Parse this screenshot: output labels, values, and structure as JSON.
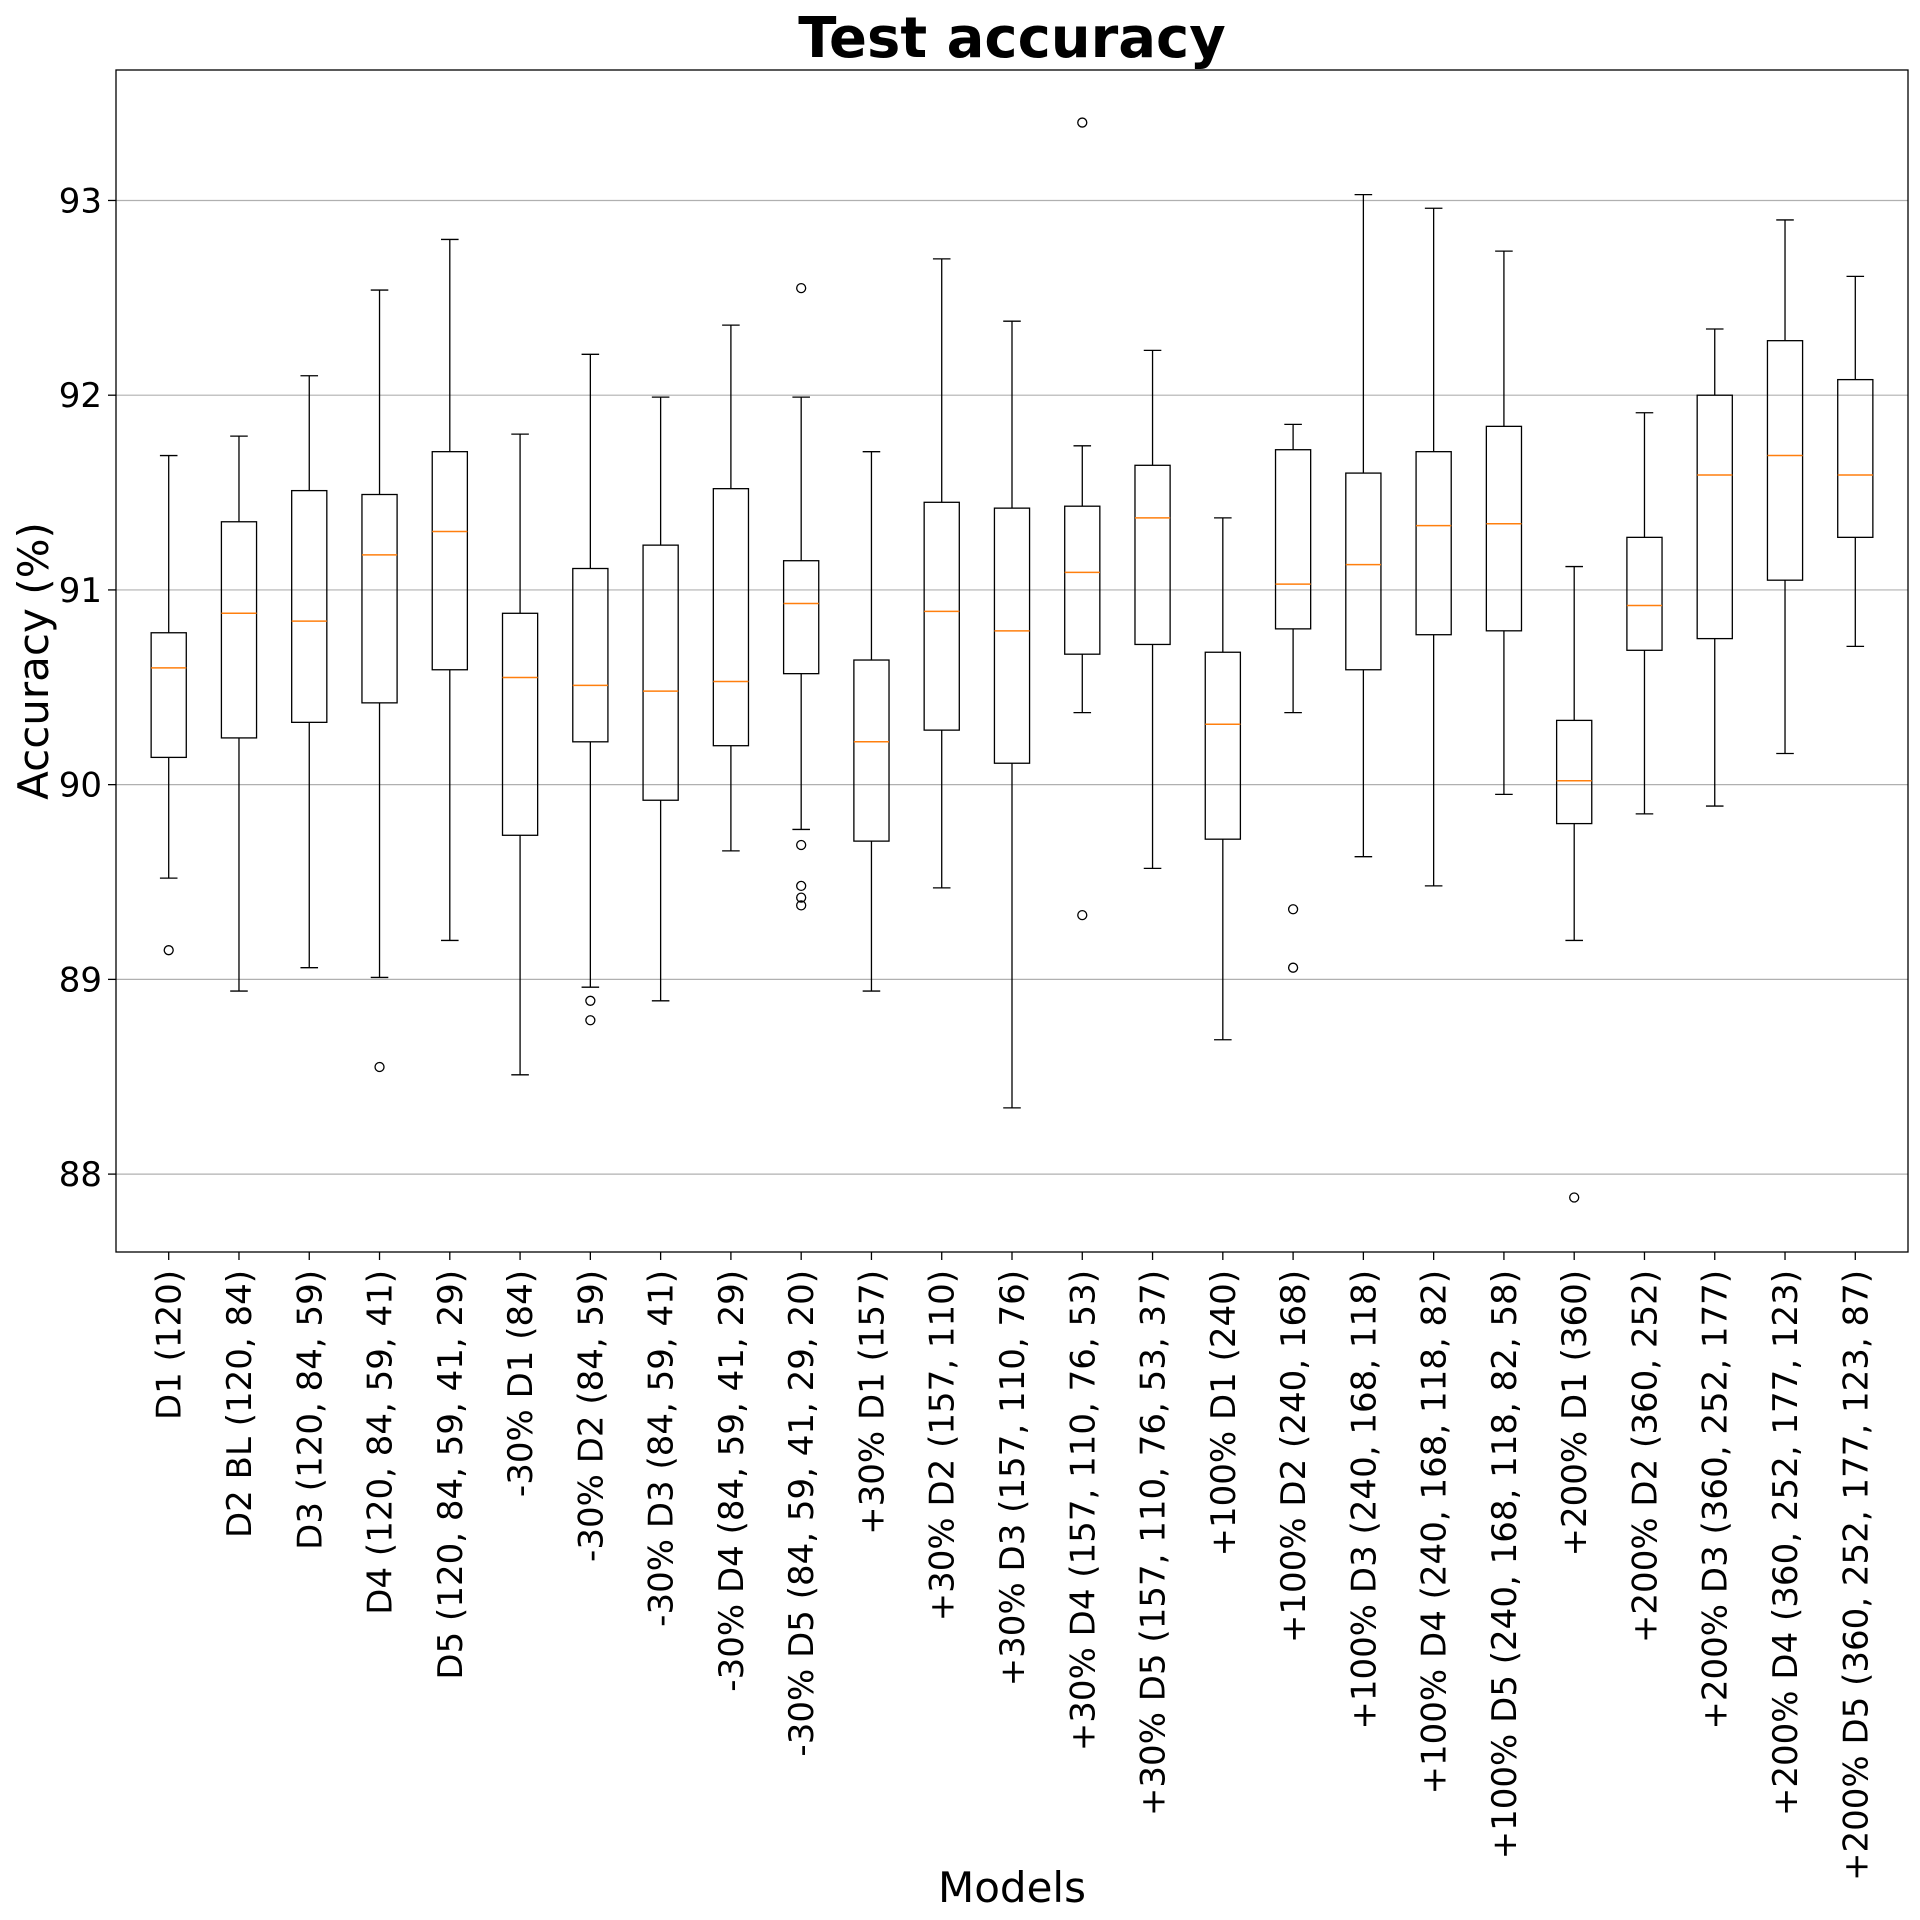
{
  "chart_data": {
    "type": "box",
    "title": "Test accuracy",
    "xlabel": "Models",
    "ylabel": "Accuracy (%)",
    "ylim": [
      87.6,
      93.67
    ],
    "yticks": [
      88,
      89,
      90,
      91,
      92,
      93
    ],
    "grid": "y",
    "colors": {
      "box": "#000000",
      "median": "#ff7f0e",
      "grid": "#b0b0b0"
    },
    "boxes": [
      {
        "label": "D1 (120)",
        "whisker_low": 89.52,
        "q1": 90.14,
        "median": 90.6,
        "q3": 90.78,
        "whisker_high": 91.69,
        "outliers": [
          89.15
        ]
      },
      {
        "label": "D2 BL (120, 84)",
        "whisker_low": 88.94,
        "q1": 90.24,
        "median": 90.88,
        "q3": 91.35,
        "whisker_high": 91.79,
        "outliers": []
      },
      {
        "label": "D3 (120, 84, 59)",
        "whisker_low": 89.06,
        "q1": 90.32,
        "median": 90.84,
        "q3": 91.51,
        "whisker_high": 92.1,
        "outliers": []
      },
      {
        "label": "D4 (120, 84, 59, 41)",
        "whisker_low": 89.01,
        "q1": 90.42,
        "median": 91.18,
        "q3": 91.49,
        "whisker_high": 92.54,
        "outliers": [
          88.55
        ]
      },
      {
        "label": "D5 (120, 84, 59, 41, 29)",
        "whisker_low": 89.2,
        "q1": 90.59,
        "median": 91.3,
        "q3": 91.71,
        "whisker_high": 92.8,
        "outliers": []
      },
      {
        "label": "-30% D1 (84)",
        "whisker_low": 88.51,
        "q1": 89.74,
        "median": 90.55,
        "q3": 90.88,
        "whisker_high": 91.8,
        "outliers": []
      },
      {
        "label": "-30% D2 (84, 59)",
        "whisker_low": 88.96,
        "q1": 90.22,
        "median": 90.51,
        "q3": 91.11,
        "whisker_high": 92.21,
        "outliers": [
          88.89,
          88.79
        ]
      },
      {
        "label": "-30% D3 (84, 59, 41)",
        "whisker_low": 88.89,
        "q1": 89.92,
        "median": 90.48,
        "q3": 91.23,
        "whisker_high": 91.99,
        "outliers": []
      },
      {
        "label": "-30% D4 (84, 59, 41, 29)",
        "whisker_low": 89.66,
        "q1": 90.2,
        "median": 90.53,
        "q3": 91.52,
        "whisker_high": 92.36,
        "outliers": []
      },
      {
        "label": "-30% D5 (84, 59, 41, 29, 20)",
        "whisker_low": 89.77,
        "q1": 90.57,
        "median": 90.93,
        "q3": 91.15,
        "whisker_high": 91.99,
        "outliers": [
          92.55,
          89.69,
          89.48,
          89.42,
          89.38
        ]
      },
      {
        "label": "+30% D1 (157)",
        "whisker_low": 88.94,
        "q1": 89.71,
        "median": 90.22,
        "q3": 90.64,
        "whisker_high": 91.71,
        "outliers": []
      },
      {
        "label": "+30% D2 (157, 110)",
        "whisker_low": 89.47,
        "q1": 90.28,
        "median": 90.89,
        "q3": 91.45,
        "whisker_high": 92.7,
        "outliers": []
      },
      {
        "label": "+30% D3 (157, 110, 76)",
        "whisker_low": 88.34,
        "q1": 90.11,
        "median": 90.79,
        "q3": 91.42,
        "whisker_high": 92.38,
        "outliers": []
      },
      {
        "label": "+30% D4 (157, 110, 76, 53)",
        "whisker_low": 90.37,
        "q1": 90.67,
        "median": 91.09,
        "q3": 91.43,
        "whisker_high": 91.74,
        "outliers": [
          93.4,
          89.33
        ]
      },
      {
        "label": "+30% D5 (157, 110, 76, 53, 37)",
        "whisker_low": 89.57,
        "q1": 90.72,
        "median": 91.37,
        "q3": 91.64,
        "whisker_high": 92.23,
        "outliers": []
      },
      {
        "label": "+100% D1 (240)",
        "whisker_low": 88.69,
        "q1": 89.72,
        "median": 90.31,
        "q3": 90.68,
        "whisker_high": 91.37,
        "outliers": []
      },
      {
        "label": "+100% D2 (240, 168)",
        "whisker_low": 90.37,
        "q1": 90.8,
        "median": 91.03,
        "q3": 91.72,
        "whisker_high": 91.85,
        "outliers": [
          89.36,
          89.06
        ]
      },
      {
        "label": "+100% D3 (240, 168, 118)",
        "whisker_low": 89.63,
        "q1": 90.59,
        "median": 91.13,
        "q3": 91.6,
        "whisker_high": 93.03,
        "outliers": []
      },
      {
        "label": "+100% D4 (240, 168, 118, 82)",
        "whisker_low": 89.48,
        "q1": 90.77,
        "median": 91.33,
        "q3": 91.71,
        "whisker_high": 92.96,
        "outliers": []
      },
      {
        "label": "+100% D5 (240, 168, 118, 82, 58)",
        "whisker_low": 89.95,
        "q1": 90.79,
        "median": 91.34,
        "q3": 91.84,
        "whisker_high": 92.74,
        "outliers": []
      },
      {
        "label": "+200% D1 (360)",
        "whisker_low": 89.2,
        "q1": 89.8,
        "median": 90.02,
        "q3": 90.33,
        "whisker_high": 91.12,
        "outliers": [
          87.88
        ]
      },
      {
        "label": "+200% D2 (360, 252)",
        "whisker_low": 89.85,
        "q1": 90.69,
        "median": 90.92,
        "q3": 91.27,
        "whisker_high": 91.91,
        "outliers": []
      },
      {
        "label": "+200% D3 (360, 252, 177)",
        "whisker_low": 89.89,
        "q1": 90.75,
        "median": 91.59,
        "q3": 92.0,
        "whisker_high": 92.34,
        "outliers": []
      },
      {
        "label": "+200% D4 (360, 252, 177, 123)",
        "whisker_low": 90.16,
        "q1": 91.05,
        "median": 91.69,
        "q3": 92.28,
        "whisker_high": 92.9,
        "outliers": []
      },
      {
        "label": "+200% D5 (360, 252, 177, 123, 87)",
        "whisker_low": 90.71,
        "q1": 91.27,
        "median": 91.59,
        "q3": 92.08,
        "whisker_high": 92.61,
        "outliers": []
      }
    ]
  }
}
